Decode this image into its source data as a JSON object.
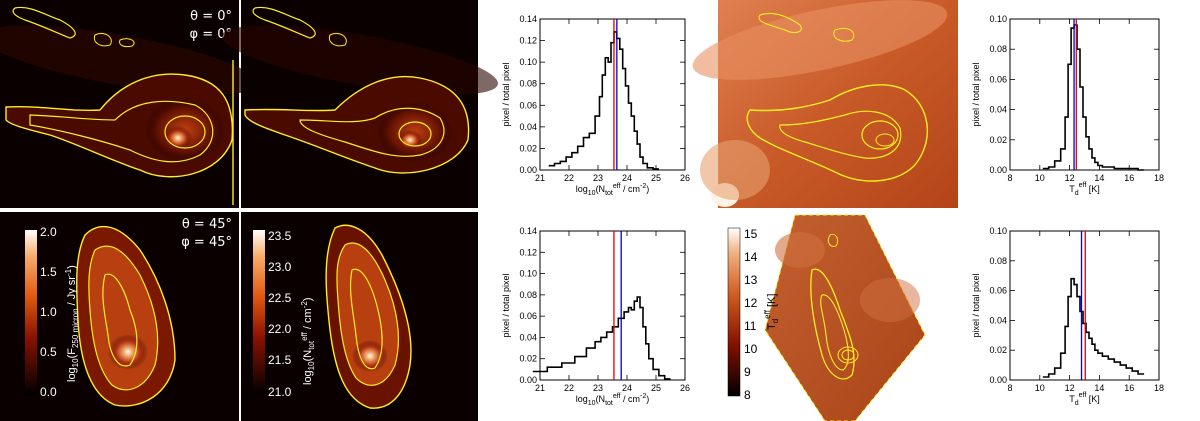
{
  "maps": {
    "angle_top": {
      "theta": "θ = 0°",
      "phi": "φ = 0°"
    },
    "angle_bottom": {
      "theta": "θ = 45°",
      "phi": "φ = 45°"
    },
    "flux_colorbar": {
      "label": "log10(F250 micron / Jy sr-1)",
      "label_main": "log",
      "label_sub1": "10",
      "label_open": "(F",
      "label_sub2": "250 micron",
      "label_mid": " / Jy sr",
      "label_sup": "-1",
      "label_close": ")",
      "ticks": [
        "2.0",
        "1.5",
        "1.0",
        "0.5",
        "0.0"
      ]
    },
    "column_colorbar": {
      "label": "log10(Ntot eff / cm-2)",
      "label_main": "log",
      "label_sub1": "10",
      "label_open": "(N",
      "label_sub2": "tot",
      "label_sup": "eff",
      "label_mid": " / cm",
      "label_sup2": "-2",
      "label_close": ")",
      "ticks": [
        "23.5",
        "23.0",
        "22.5",
        "22.0",
        "21.5",
        "21.0"
      ]
    },
    "temp_colorbar": {
      "label_main": "T",
      "label_sub": "d",
      "label_sup": "eff",
      "label_unit": " [K]",
      "ticks": [
        "15",
        "14",
        "13",
        "12",
        "11",
        "10",
        "9",
        "8"
      ]
    },
    "colors": {
      "map_dark": "#0a0000",
      "map_hot": "#fff0e0",
      "contour": "#ffee22",
      "temp_map": "#c8501e"
    }
  },
  "chart_data": [
    {
      "type": "line",
      "ylabel": "pixel / total pixel",
      "xlabel": "log10(Ntot eff / cm-2)",
      "xlim": [
        21,
        26
      ],
      "ylim": [
        0,
        0.14
      ],
      "xticks": [
        "21",
        "22",
        "23",
        "24",
        "25",
        "26"
      ],
      "yticks": [
        "0.00",
        "0.02",
        "0.04",
        "0.06",
        "0.08",
        "0.10",
        "0.12",
        "0.14"
      ],
      "x": [
        21.4,
        21.6,
        21.8,
        22.0,
        22.2,
        22.4,
        22.6,
        22.8,
        23.0,
        23.1,
        23.2,
        23.3,
        23.4,
        23.5,
        23.6,
        23.7,
        23.8,
        23.9,
        24.0,
        24.1,
        24.2,
        24.3,
        24.4,
        24.5,
        24.6,
        24.8,
        25.0
      ],
      "y": [
        0.004,
        0.006,
        0.008,
        0.012,
        0.016,
        0.022,
        0.03,
        0.034,
        0.05,
        0.068,
        0.088,
        0.104,
        0.1,
        0.118,
        0.128,
        0.122,
        0.112,
        0.094,
        0.078,
        0.062,
        0.05,
        0.036,
        0.024,
        0.012,
        0.006,
        0.002,
        0.001
      ],
      "vlines": [
        {
          "x": 23.55,
          "color": "#e00000"
        },
        {
          "x": 23.65,
          "color": "#0000e0"
        }
      ]
    },
    {
      "type": "line",
      "ylabel": "pixel / total pixel",
      "xlabel": "Td eff [K]",
      "xlim": [
        8,
        18
      ],
      "ylim": [
        0,
        0.1
      ],
      "xticks": [
        "8",
        "10",
        "12",
        "14",
        "16",
        "18"
      ],
      "yticks": [
        "0.00",
        "0.02",
        "0.04",
        "0.06",
        "0.08",
        "0.10"
      ],
      "x": [
        10.4,
        10.8,
        11.2,
        11.6,
        11.8,
        12.0,
        12.2,
        12.4,
        12.6,
        12.8,
        13.0,
        13.2,
        13.4,
        13.6,
        13.8,
        14.0,
        14.4,
        14.8,
        15.2,
        15.6,
        16.0,
        16.4,
        16.8
      ],
      "y": [
        0.001,
        0.002,
        0.006,
        0.014,
        0.035,
        0.07,
        0.094,
        0.096,
        0.08,
        0.055,
        0.035,
        0.022,
        0.014,
        0.008,
        0.005,
        0.003,
        0.002,
        0.002,
        0.001,
        0.001,
        0.001,
        0.001,
        0.0
      ],
      "vlines": [
        {
          "x": 12.3,
          "color": "#0000e0"
        },
        {
          "x": 12.45,
          "color": "#e00000"
        }
      ]
    },
    {
      "type": "line",
      "ylabel": "pixel / total pixel",
      "xlabel": "log10(Ntot eff / cm-2)",
      "xlim": [
        21,
        26
      ],
      "ylim": [
        0,
        0.14
      ],
      "xticks": [
        "21",
        "22",
        "23",
        "24",
        "25",
        "26"
      ],
      "yticks": [
        "0.00",
        "0.02",
        "0.04",
        "0.06",
        "0.08",
        "0.10",
        "0.12",
        "0.14"
      ],
      "x": [
        21.0,
        21.5,
        22.0,
        22.4,
        22.8,
        23.0,
        23.2,
        23.4,
        23.6,
        23.8,
        24.0,
        24.1,
        24.2,
        24.3,
        24.4,
        24.5,
        24.6,
        24.7,
        24.8,
        25.0,
        25.2,
        25.4
      ],
      "y": [
        0.008,
        0.012,
        0.016,
        0.022,
        0.03,
        0.036,
        0.04,
        0.045,
        0.05,
        0.058,
        0.064,
        0.068,
        0.066,
        0.074,
        0.078,
        0.068,
        0.05,
        0.034,
        0.02,
        0.01,
        0.004,
        0.001
      ],
      "vlines": [
        {
          "x": 23.55,
          "color": "#e00000"
        },
        {
          "x": 23.8,
          "color": "#0000e0"
        }
      ]
    },
    {
      "type": "line",
      "ylabel": "pixel / total pixel",
      "xlabel": "Td eff [K]",
      "xlim": [
        8,
        18
      ],
      "ylim": [
        0,
        0.1
      ],
      "xticks": [
        "8",
        "10",
        "12",
        "14",
        "16",
        "18"
      ],
      "yticks": [
        "0.00",
        "0.02",
        "0.04",
        "0.06",
        "0.08",
        "0.10"
      ],
      "x": [
        10.4,
        10.8,
        11.2,
        11.6,
        11.8,
        12.0,
        12.2,
        12.4,
        12.6,
        12.8,
        13.0,
        13.2,
        13.4,
        13.6,
        13.8,
        14.0,
        14.4,
        14.8,
        15.2,
        15.6,
        16.0,
        16.4,
        16.8
      ],
      "y": [
        0.002,
        0.004,
        0.008,
        0.018,
        0.036,
        0.056,
        0.068,
        0.064,
        0.056,
        0.046,
        0.038,
        0.032,
        0.028,
        0.024,
        0.02,
        0.018,
        0.016,
        0.014,
        0.012,
        0.01,
        0.008,
        0.006,
        0.004
      ],
      "vlines": [
        {
          "x": 12.8,
          "color": "#0000e0"
        },
        {
          "x": 13.05,
          "color": "#e00000"
        }
      ]
    }
  ]
}
